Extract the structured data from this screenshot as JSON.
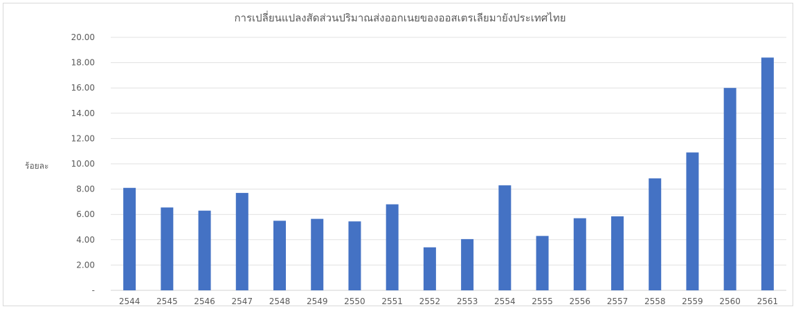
{
  "chart_data": {
    "type": "bar",
    "title": "การเปลี่ยนแปลงสัดส่วนปริมาณส่งออกเนยของออสเตรเลียมายังประเทศไทย",
    "ylabel": "ร้อยละ",
    "xlabel": "",
    "categories": [
      "2544",
      "2545",
      "2546",
      "2547",
      "2548",
      "2549",
      "2550",
      "2551",
      "2552",
      "2553",
      "2554",
      "2555",
      "2556",
      "2557",
      "2558",
      "2559",
      "2560",
      "2561"
    ],
    "values": [
      8.1,
      6.55,
      6.3,
      7.7,
      5.5,
      5.65,
      5.45,
      6.8,
      3.4,
      4.05,
      8.3,
      4.3,
      5.7,
      5.85,
      8.85,
      10.9,
      16.0,
      18.4
    ],
    "ylim": [
      0,
      20
    ],
    "yticks": [
      {
        "value": 0,
        "label": "-"
      },
      {
        "value": 2,
        "label": "2.00"
      },
      {
        "value": 4,
        "label": "4.00"
      },
      {
        "value": 6,
        "label": "6.00"
      },
      {
        "value": 8,
        "label": "8.00"
      },
      {
        "value": 10,
        "label": "10.00"
      },
      {
        "value": 12,
        "label": "12.00"
      },
      {
        "value": 14,
        "label": "14.00"
      },
      {
        "value": 16,
        "label": "16.00"
      },
      {
        "value": 18,
        "label": "18.00"
      },
      {
        "value": 20,
        "label": "20.00"
      }
    ],
    "grid": true,
    "legend": "none",
    "bar_color": "#4472c4"
  }
}
